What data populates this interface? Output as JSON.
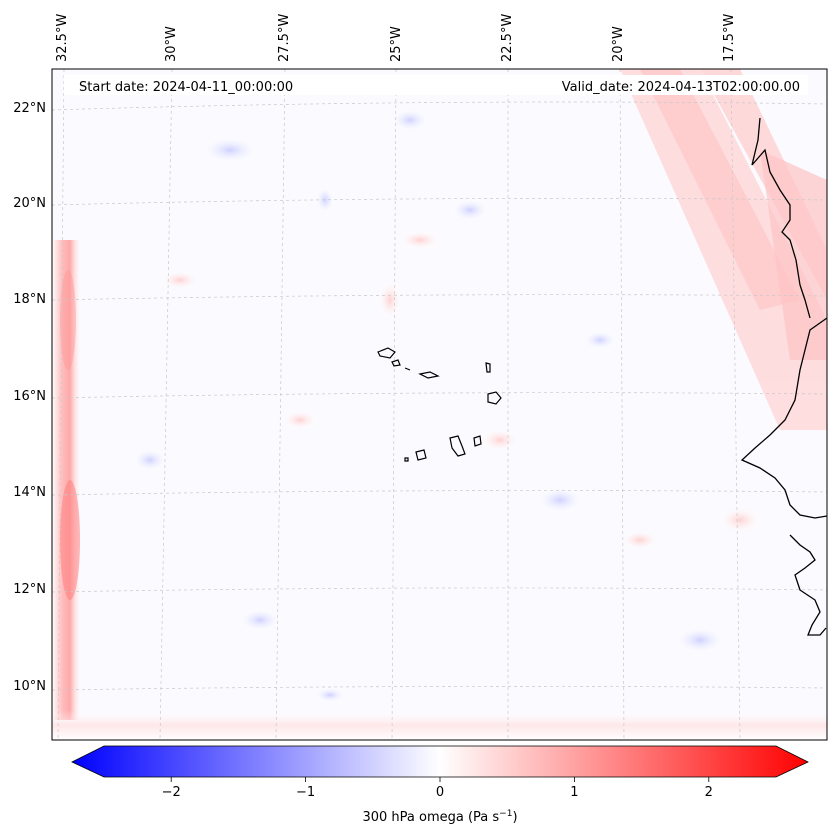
{
  "map": {
    "start_date_label": "Start date: 2024-04-11_00:00:00",
    "valid_date_label": "Valid_date: 2024-04-13T02:00:00.00",
    "lon_labels": [
      "32.5°W",
      "30°W",
      "27.5°W",
      "25°W",
      "22.5°W",
      "20°W",
      "17.5°W"
    ],
    "lat_labels": [
      "22°N",
      "20°N",
      "18°N",
      "16°N",
      "14°N",
      "12°N",
      "10°N"
    ],
    "extent": {
      "lon_min": -33.0,
      "lon_max": -16.0,
      "lat_min": 8.9,
      "lat_max": 22.8
    },
    "field": "300 hPa omega",
    "colormap": "bwr",
    "colors": {
      "negative": "#0000ff",
      "zero": "#ffffff",
      "positive": "#ff0000",
      "coast": "#000000",
      "grid": "#c8c8c8"
    }
  },
  "colorbar": {
    "ticks": [
      "−2",
      "−1",
      "0",
      "1",
      "2"
    ],
    "tick_values": [
      -2,
      -1,
      0,
      1,
      2
    ],
    "range": [
      -2.5,
      2.5
    ],
    "label_main": "300 hPa omega (Pa s",
    "label_sup": "−1",
    "label_end": ")"
  }
}
